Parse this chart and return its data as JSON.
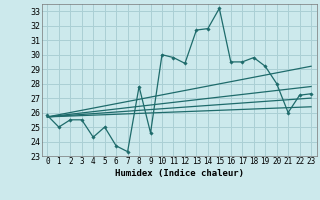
{
  "xlabel": "Humidex (Indice chaleur)",
  "bg_color": "#cce9ec",
  "grid_color": "#aacfd4",
  "line_color": "#1e6b6b",
  "xlim": [
    -0.5,
    23.5
  ],
  "ylim": [
    23,
    33.5
  ],
  "yticks": [
    23,
    24,
    25,
    26,
    27,
    28,
    29,
    30,
    31,
    32,
    33
  ],
  "xticks": [
    0,
    1,
    2,
    3,
    4,
    5,
    6,
    7,
    8,
    9,
    10,
    11,
    12,
    13,
    14,
    15,
    16,
    17,
    18,
    19,
    20,
    21,
    22,
    23
  ],
  "line1_x": [
    0,
    1,
    2,
    3,
    4,
    5,
    6,
    7,
    8,
    9,
    10,
    11,
    12,
    13,
    14,
    15,
    16,
    17,
    18,
    19,
    20,
    21,
    22,
    23
  ],
  "line1_y": [
    25.8,
    25.0,
    25.5,
    25.5,
    24.3,
    25.0,
    23.7,
    23.3,
    27.8,
    24.6,
    30.0,
    29.8,
    29.4,
    31.7,
    31.8,
    33.2,
    29.5,
    29.5,
    29.8,
    29.2,
    28.0,
    26.0,
    27.2,
    27.3
  ],
  "line2_x": [
    0,
    23
  ],
  "line2_y": [
    25.7,
    29.2
  ],
  "line3_x": [
    0,
    23
  ],
  "line3_y": [
    25.7,
    27.8
  ],
  "line4_x": [
    0,
    23
  ],
  "line4_y": [
    25.7,
    27.0
  ],
  "line5_x": [
    0,
    23
  ],
  "line5_y": [
    25.7,
    26.4
  ]
}
